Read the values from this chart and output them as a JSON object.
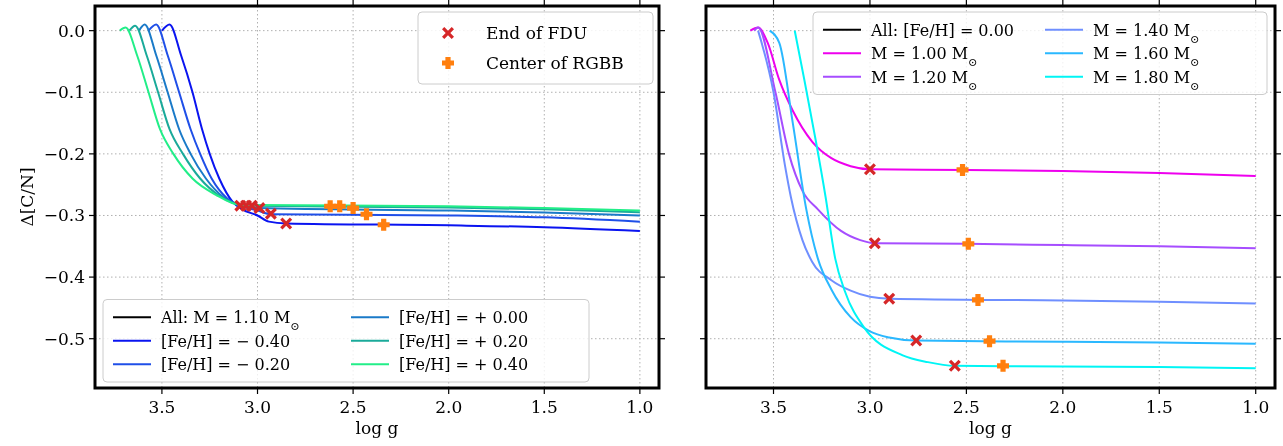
{
  "chart_data": [
    {
      "type": "line",
      "xlabel": "log g",
      "ylabel": "Δ[C/N]",
      "xlim": [
        3.85,
        0.9
      ],
      "ylim": [
        -0.58,
        0.04
      ],
      "xticks": [
        {
          "value": 3.5,
          "label": "3.5"
        },
        {
          "value": 3.0,
          "label": "3.0"
        },
        {
          "value": 2.5,
          "label": "2.5"
        },
        {
          "value": 2.0,
          "label": "2.0"
        },
        {
          "value": 1.5,
          "label": "1.5"
        },
        {
          "value": 1.0,
          "label": "1.0"
        }
      ],
      "yticks": [
        {
          "value": 0,
          "label": "0.0"
        },
        {
          "value": -0.1,
          "label": "−0.1"
        },
        {
          "value": -0.2,
          "label": "−0.2"
        },
        {
          "value": -0.3,
          "label": "−0.3"
        },
        {
          "value": -0.4,
          "label": "−0.4"
        },
        {
          "value": -0.5,
          "label": "−0.5"
        }
      ],
      "grid": true,
      "legend": "bottom left",
      "line_style": "solid",
      "series": [
        {
          "name": "All: M = 1.10 M$_{⊙}$",
          "color": "#000000"
        },
        {
          "name": "[Fe/H] = − 0.40",
          "color": "#0a14f0",
          "x": [
            3.5,
            3.46,
            3.4,
            3.34,
            3.29,
            3.25,
            3.2,
            3.13,
            3.08,
            3.0,
            2.94,
            2.85,
            2.0,
            1.5,
            1.0
          ],
          "values": [
            0.0,
            0.01,
            -0.04,
            -0.1,
            -0.16,
            -0.2,
            -0.24,
            -0.278,
            -0.29,
            -0.3,
            -0.31,
            -0.313,
            -0.316,
            -0.319,
            -0.325
          ]
        },
        {
          "name": "[Fe/H] = − 0.20",
          "color": "#1f4fe8",
          "x": [
            3.57,
            3.53,
            3.47,
            3.41,
            3.35,
            3.3,
            3.24,
            3.16,
            3.08,
            3.0,
            2.93,
            2.0,
            1.5,
            1.0
          ],
          "values": [
            0.0,
            0.01,
            -0.04,
            -0.1,
            -0.16,
            -0.2,
            -0.24,
            -0.272,
            -0.285,
            -0.292,
            -0.298,
            -0.3,
            -0.303,
            -0.31
          ]
        },
        {
          "name": "[Fe/H] = + 0.00",
          "color": "#1a7ac8",
          "x": [
            3.62,
            3.59,
            3.53,
            3.47,
            3.41,
            3.35,
            3.27,
            3.18,
            3.08,
            2.99,
            2.0,
            1.5,
            1.0
          ],
          "values": [
            0.0,
            0.01,
            -0.04,
            -0.1,
            -0.16,
            -0.2,
            -0.24,
            -0.27,
            -0.284,
            -0.288,
            -0.292,
            -0.295,
            -0.3
          ]
        },
        {
          "name": "[Fe/H] = + 0.20",
          "color": "#1aaa9a",
          "x": [
            3.67,
            3.64,
            3.58,
            3.52,
            3.46,
            3.39,
            3.3,
            3.2,
            3.06,
            2.0,
            1.5,
            1.0
          ],
          "values": [
            0.0,
            0.008,
            -0.04,
            -0.1,
            -0.16,
            -0.2,
            -0.24,
            -0.268,
            -0.284,
            -0.287,
            -0.29,
            -0.295
          ]
        },
        {
          "name": "[Fe/H] = + 0.40",
          "color": "#22ee88",
          "x": [
            3.72,
            3.69,
            3.63,
            3.57,
            3.51,
            3.44,
            3.34,
            3.22,
            3.09,
            2.0,
            1.5,
            1.0
          ],
          "values": [
            0.0,
            0.005,
            -0.04,
            -0.1,
            -0.16,
            -0.2,
            -0.24,
            -0.266,
            -0.283,
            -0.285,
            -0.288,
            -0.292
          ]
        },
        {
          "type": "scatter",
          "name": "End of FDU",
          "color": "#d62728",
          "marker": "cross",
          "x": [
            3.09,
            3.06,
            3.03,
            2.99,
            2.93,
            2.85
          ],
          "values": [
            -0.284,
            -0.284,
            -0.284,
            -0.288,
            -0.297,
            -0.313
          ]
        },
        {
          "type": "scatter",
          "name": "Center of RGBB",
          "color": "#ff7f0e",
          "marker": "plus",
          "x": [
            2.62,
            2.57,
            2.5,
            2.43,
            2.34
          ],
          "values": [
            -0.285,
            -0.285,
            -0.288,
            -0.298,
            -0.315
          ]
        }
      ]
    },
    {
      "type": "line",
      "xlabel": "log g",
      "xlim": [
        3.85,
        0.9
      ],
      "ylim": [
        -0.58,
        0.04
      ],
      "xticks": [
        {
          "value": 3.5,
          "label": "3.5"
        },
        {
          "value": 3.0,
          "label": "3.0"
        },
        {
          "value": 2.5,
          "label": "2.5"
        },
        {
          "value": 2.0,
          "label": "2.0"
        },
        {
          "value": 1.5,
          "label": "1.5"
        },
        {
          "value": 1.0,
          "label": "1.0"
        }
      ],
      "yticks": [
        {
          "value": 0,
          "label": null
        },
        {
          "value": -0.1,
          "label": null
        },
        {
          "value": -0.2,
          "label": null
        },
        {
          "value": -0.3,
          "label": null
        },
        {
          "value": -0.4,
          "label": null
        },
        {
          "value": -0.5,
          "label": null
        }
      ],
      "tick_labels": "x",
      "grid": true,
      "legend": "top right",
      "line_style": "solid",
      "series": [
        {
          "name": "All: [Fe/H] = 0.00",
          "color": "#000000"
        },
        {
          "name": "M = 1.00 M$_{⊙}$",
          "color": "#ee00ee",
          "x": [
            3.62,
            3.58,
            3.53,
            3.47,
            3.4,
            3.3,
            3.2,
            3.1,
            3.0,
            2.5,
            2.0,
            1.5,
            1.0
          ],
          "values": [
            0.0,
            0.005,
            -0.02,
            -0.08,
            -0.13,
            -0.18,
            -0.207,
            -0.22,
            -0.225,
            -0.226,
            -0.228,
            -0.231,
            -0.236
          ]
        },
        {
          "name": "M = 1.20 M$_{⊙}$",
          "color": "#a64dff",
          "x": [
            3.6,
            3.58,
            3.49,
            3.42,
            3.35,
            3.27,
            3.15,
            3.05,
            2.975,
            2.5,
            2.0,
            1.5,
            1.0
          ],
          "values": [
            0.0,
            0.005,
            -0.1,
            -0.2,
            -0.26,
            -0.29,
            -0.325,
            -0.34,
            -0.345,
            -0.346,
            -0.348,
            -0.35,
            -0.353
          ]
        },
        {
          "name": "M = 1.40 M$_{⊙}$",
          "color": "#6f8fff",
          "x": [
            3.58,
            3.5,
            3.44,
            3.41,
            3.35,
            3.3,
            3.2,
            3.1,
            3.0,
            2.9,
            2.0,
            1.5,
            1.0
          ],
          "values": [
            0.0,
            -0.1,
            -0.22,
            -0.27,
            -0.34,
            -0.375,
            -0.405,
            -0.422,
            -0.432,
            -0.435,
            -0.438,
            -0.44,
            -0.443
          ]
        },
        {
          "name": "M = 1.60 M$_{⊙}$",
          "color": "#2ab8ff",
          "x": [
            3.52,
            3.47,
            3.4,
            3.33,
            3.27,
            3.2,
            3.1,
            3.0,
            2.9,
            2.76,
            2.0,
            1.5,
            1.0
          ],
          "values": [
            0.0,
            -0.02,
            -0.15,
            -0.29,
            -0.37,
            -0.42,
            -0.465,
            -0.488,
            -0.498,
            -0.503,
            -0.505,
            -0.506,
            -0.508
          ]
        },
        {
          "name": "M = 1.80 M$_{⊙}$",
          "color": "#00f5f5",
          "x": [
            3.39,
            3.34,
            3.28,
            3.23,
            3.18,
            3.13,
            3.03,
            2.83,
            2.7,
            2.56,
            2.0,
            1.5,
            1.0
          ],
          "values": [
            0.0,
            -0.08,
            -0.18,
            -0.27,
            -0.37,
            -0.423,
            -0.482,
            -0.527,
            -0.538,
            -0.544,
            -0.545,
            -0.546,
            -0.548
          ]
        },
        {
          "type": "scatter",
          "color": "#d62728",
          "marker": "cross",
          "x": [
            3.0,
            2.975,
            2.9,
            2.76,
            2.56
          ],
          "values": [
            -0.225,
            -0.345,
            -0.435,
            -0.503,
            -0.544
          ]
        },
        {
          "type": "scatter",
          "color": "#ff7f0e",
          "marker": "plus",
          "x": [
            2.52,
            2.49,
            2.44,
            2.38,
            2.31
          ],
          "values": [
            -0.226,
            -0.346,
            -0.437,
            -0.504,
            -0.544
          ]
        }
      ]
    }
  ]
}
